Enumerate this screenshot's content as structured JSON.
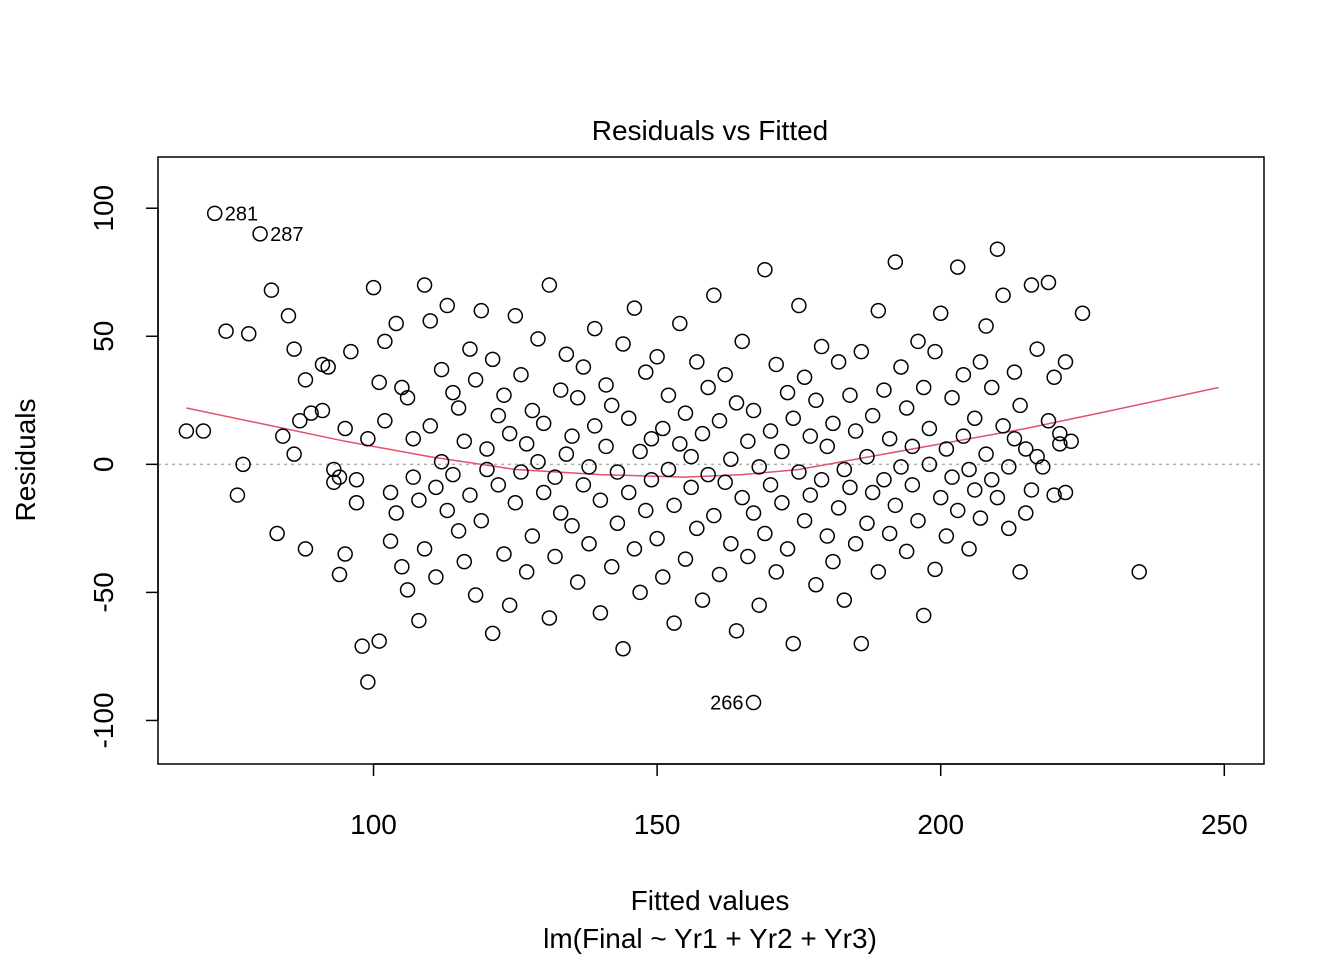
{
  "chart_data": {
    "type": "scatter",
    "title": "Residuals vs Fitted",
    "xlabel": "Fitted values",
    "subtitle": "lm(Final ~ Yr1 + Yr2 + Yr3)",
    "ylabel": "Residuals",
    "xlim": [
      62,
      257
    ],
    "ylim": [
      -117,
      120
    ],
    "x_ticks": [
      100,
      150,
      200,
      250
    ],
    "y_ticks": [
      -100,
      -50,
      0,
      50,
      100
    ],
    "reference_line": {
      "y": 0,
      "style": "dotted",
      "color": "#b0b0b0"
    },
    "smoother": {
      "color": "#df536b",
      "x": [
        67,
        80,
        95,
        110,
        125,
        140,
        155,
        165,
        175,
        185,
        200,
        215,
        230,
        249
      ],
      "y": [
        22,
        16,
        9,
        3,
        -2,
        -4,
        -5,
        -4,
        -2,
        2,
        8,
        14,
        21,
        30
      ]
    },
    "labeled_points": [
      {
        "label": "281",
        "x": 72,
        "y": 98
      },
      {
        "label": "287",
        "x": 80,
        "y": 90
      },
      {
        "label": "266",
        "x": 167,
        "y": -93
      }
    ],
    "points": [
      [
        67,
        13
      ],
      [
        70,
        13
      ],
      [
        74,
        52
      ],
      [
        76,
        -12
      ],
      [
        77,
        0
      ],
      [
        78,
        51
      ],
      [
        82,
        68
      ],
      [
        83,
        -27
      ],
      [
        84,
        11
      ],
      [
        85,
        58
      ],
      [
        86,
        4
      ],
      [
        86,
        45
      ],
      [
        87,
        17
      ],
      [
        88,
        -33
      ],
      [
        88,
        33
      ],
      [
        89,
        20
      ],
      [
        91,
        39
      ],
      [
        91,
        21
      ],
      [
        92,
        38
      ],
      [
        93,
        -2
      ],
      [
        93,
        -7
      ],
      [
        94,
        -5
      ],
      [
        94,
        -43
      ],
      [
        95,
        14
      ],
      [
        95,
        -35
      ],
      [
        96,
        44
      ],
      [
        97,
        -6
      ],
      [
        97,
        -15
      ],
      [
        98,
        -71
      ],
      [
        99,
        10
      ],
      [
        99,
        -85
      ],
      [
        100,
        69
      ],
      [
        101,
        32
      ],
      [
        101,
        -69
      ],
      [
        102,
        17
      ],
      [
        102,
        48
      ],
      [
        103,
        -30
      ],
      [
        103,
        -11
      ],
      [
        104,
        55
      ],
      [
        104,
        -19
      ],
      [
        105,
        -40
      ],
      [
        105,
        30
      ],
      [
        106,
        26
      ],
      [
        106,
        -49
      ],
      [
        107,
        -5
      ],
      [
        107,
        10
      ],
      [
        108,
        -14
      ],
      [
        108,
        -61
      ],
      [
        109,
        70
      ],
      [
        109,
        -33
      ],
      [
        110,
        56
      ],
      [
        110,
        15
      ],
      [
        111,
        -44
      ],
      [
        111,
        -9
      ],
      [
        112,
        1
      ],
      [
        112,
        37
      ],
      [
        113,
        62
      ],
      [
        113,
        -18
      ],
      [
        114,
        28
      ],
      [
        114,
        -4
      ],
      [
        115,
        -26
      ],
      [
        115,
        22
      ],
      [
        116,
        -38
      ],
      [
        116,
        9
      ],
      [
        117,
        45
      ],
      [
        117,
        -12
      ],
      [
        118,
        -51
      ],
      [
        118,
        33
      ],
      [
        119,
        60
      ],
      [
        119,
        -22
      ],
      [
        120,
        6
      ],
      [
        120,
        -2
      ],
      [
        121,
        41
      ],
      [
        121,
        -66
      ],
      [
        122,
        19
      ],
      [
        122,
        -8
      ],
      [
        123,
        -35
      ],
      [
        123,
        27
      ],
      [
        124,
        -55
      ],
      [
        124,
        12
      ],
      [
        125,
        58
      ],
      [
        125,
        -15
      ],
      [
        126,
        -3
      ],
      [
        126,
        35
      ],
      [
        127,
        -42
      ],
      [
        127,
        8
      ],
      [
        128,
        21
      ],
      [
        128,
        -28
      ],
      [
        129,
        49
      ],
      [
        129,
        1
      ],
      [
        130,
        -11
      ],
      [
        130,
        16
      ],
      [
        131,
        -60
      ],
      [
        131,
        70
      ],
      [
        132,
        -5
      ],
      [
        132,
        -36
      ],
      [
        133,
        29
      ],
      [
        133,
        -19
      ],
      [
        134,
        4
      ],
      [
        134,
        43
      ],
      [
        135,
        -24
      ],
      [
        135,
        11
      ],
      [
        136,
        -46
      ],
      [
        136,
        26
      ],
      [
        137,
        -8
      ],
      [
        137,
        38
      ],
      [
        138,
        -31
      ],
      [
        138,
        -1
      ],
      [
        139,
        15
      ],
      [
        139,
        53
      ],
      [
        140,
        -14
      ],
      [
        140,
        -58
      ],
      [
        141,
        7
      ],
      [
        141,
        31
      ],
      [
        142,
        -40
      ],
      [
        142,
        23
      ],
      [
        143,
        -3
      ],
      [
        143,
        -23
      ],
      [
        144,
        -72
      ],
      [
        144,
        47
      ],
      [
        145,
        18
      ],
      [
        145,
        -11
      ],
      [
        146,
        61
      ],
      [
        146,
        -33
      ],
      [
        147,
        5
      ],
      [
        147,
        -50
      ],
      [
        148,
        -18
      ],
      [
        148,
        36
      ],
      [
        149,
        10
      ],
      [
        149,
        -6
      ],
      [
        150,
        -29
      ],
      [
        150,
        42
      ],
      [
        151,
        -44
      ],
      [
        151,
        14
      ],
      [
        152,
        -2
      ],
      [
        152,
        27
      ],
      [
        153,
        -62
      ],
      [
        153,
        -16
      ],
      [
        154,
        8
      ],
      [
        154,
        55
      ],
      [
        155,
        -37
      ],
      [
        155,
        20
      ],
      [
        156,
        3
      ],
      [
        156,
        -9
      ],
      [
        157,
        -25
      ],
      [
        157,
        40
      ],
      [
        158,
        -53
      ],
      [
        158,
        12
      ],
      [
        159,
        30
      ],
      [
        159,
        -4
      ],
      [
        160,
        66
      ],
      [
        160,
        -20
      ],
      [
        161,
        -43
      ],
      [
        161,
        17
      ],
      [
        162,
        -7
      ],
      [
        162,
        35
      ],
      [
        163,
        -31
      ],
      [
        163,
        2
      ],
      [
        164,
        -65
      ],
      [
        164,
        24
      ],
      [
        165,
        -13
      ],
      [
        165,
        48
      ],
      [
        166,
        -36
      ],
      [
        166,
        9
      ],
      [
        167,
        -19
      ],
      [
        167,
        21
      ],
      [
        168,
        -55
      ],
      [
        168,
        -1
      ],
      [
        169,
        76
      ],
      [
        169,
        -27
      ],
      [
        170,
        13
      ],
      [
        170,
        -8
      ],
      [
        171,
        39
      ],
      [
        171,
        -42
      ],
      [
        172,
        5
      ],
      [
        172,
        -15
      ],
      [
        173,
        28
      ],
      [
        173,
        -33
      ],
      [
        174,
        -70
      ],
      [
        174,
        18
      ],
      [
        175,
        62
      ],
      [
        175,
        -3
      ],
      [
        176,
        -22
      ],
      [
        176,
        34
      ],
      [
        177,
        11
      ],
      [
        177,
        -12
      ],
      [
        178,
        -47
      ],
      [
        178,
        25
      ],
      [
        179,
        -6
      ],
      [
        179,
        46
      ],
      [
        180,
        -28
      ],
      [
        180,
        7
      ],
      [
        181,
        -38
      ],
      [
        181,
        16
      ],
      [
        182,
        -17
      ],
      [
        182,
        40
      ],
      [
        183,
        -2
      ],
      [
        183,
        -53
      ],
      [
        184,
        27
      ],
      [
        184,
        -9
      ],
      [
        185,
        -31
      ],
      [
        185,
        13
      ],
      [
        186,
        -70
      ],
      [
        186,
        44
      ],
      [
        187,
        -23
      ],
      [
        187,
        3
      ],
      [
        188,
        19
      ],
      [
        188,
        -11
      ],
      [
        189,
        -42
      ],
      [
        189,
        60
      ],
      [
        190,
        -6
      ],
      [
        190,
        29
      ],
      [
        191,
        -27
      ],
      [
        191,
        10
      ],
      [
        192,
        79
      ],
      [
        192,
        -16
      ],
      [
        193,
        38
      ],
      [
        193,
        -1
      ],
      [
        194,
        -34
      ],
      [
        194,
        22
      ],
      [
        195,
        7
      ],
      [
        195,
        -8
      ],
      [
        196,
        48
      ],
      [
        196,
        -22
      ],
      [
        197,
        -59
      ],
      [
        197,
        30
      ],
      [
        198,
        0
      ],
      [
        198,
        14
      ],
      [
        199,
        -41
      ],
      [
        199,
        44
      ],
      [
        200,
        -13
      ],
      [
        200,
        59
      ],
      [
        201,
        6
      ],
      [
        201,
        -28
      ],
      [
        202,
        26
      ],
      [
        202,
        -5
      ],
      [
        203,
        77
      ],
      [
        203,
        -18
      ],
      [
        204,
        35
      ],
      [
        204,
        11
      ],
      [
        205,
        -2
      ],
      [
        205,
        -33
      ],
      [
        206,
        -10
      ],
      [
        206,
        18
      ],
      [
        207,
        40
      ],
      [
        207,
        -21
      ],
      [
        208,
        54
      ],
      [
        208,
        4
      ],
      [
        209,
        -6
      ],
      [
        209,
        30
      ],
      [
        210,
        84
      ],
      [
        210,
        -13
      ],
      [
        211,
        66
      ],
      [
        211,
        15
      ],
      [
        212,
        -25
      ],
      [
        212,
        -1
      ],
      [
        213,
        36
      ],
      [
        213,
        10
      ],
      [
        214,
        -42
      ],
      [
        214,
        23
      ],
      [
        215,
        -19
      ],
      [
        215,
        6
      ],
      [
        216,
        70
      ],
      [
        216,
        -10
      ],
      [
        217,
        3
      ],
      [
        217,
        45
      ],
      [
        218,
        -1
      ],
      [
        219,
        17
      ],
      [
        219,
        71
      ],
      [
        220,
        -12
      ],
      [
        220,
        34
      ],
      [
        221,
        8
      ],
      [
        221,
        12
      ],
      [
        222,
        40
      ],
      [
        222,
        -11
      ],
      [
        223,
        9
      ],
      [
        225,
        59
      ],
      [
        235,
        -42
      ]
    ]
  }
}
